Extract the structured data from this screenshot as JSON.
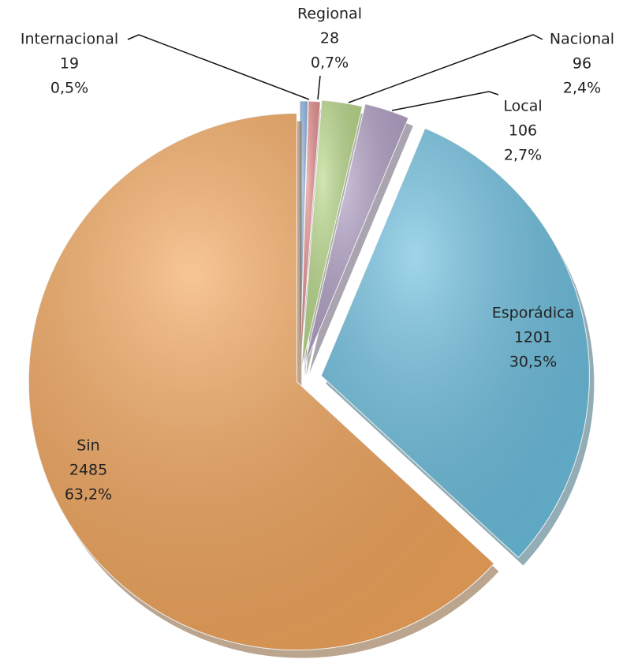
{
  "chart_data": {
    "type": "pie",
    "categories": [
      "Internacional",
      "Regional",
      "Nacional",
      "Local",
      "Esporádica",
      "Sin"
    ],
    "values": [
      19,
      28,
      96,
      106,
      1201,
      2485
    ],
    "percent_labels": [
      "0,5%",
      "0,7%",
      "2,4%",
      "2,7%",
      "30,5%",
      "63,2%"
    ],
    "colors": [
      "#8db3e2",
      "#e6908f",
      "#b9d98a",
      "#b3a2c7",
      "#6cbfdf",
      "#f3a65c"
    ]
  }
}
